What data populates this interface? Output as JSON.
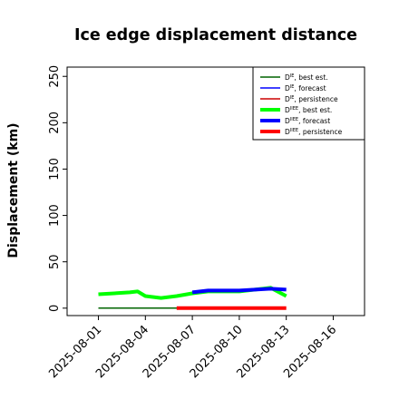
{
  "chart_data": {
    "type": "line",
    "title": "Ice edge displacement distance",
    "ylabel": "Displacement (km)",
    "xlabel": "",
    "ylim": [
      -8,
      260
    ],
    "xlim": [
      "2025-07-30",
      "2025-08-18"
    ],
    "yticks": [
      0,
      50,
      100,
      150,
      200,
      250
    ],
    "xticks": [
      {
        "label": "2025-08-01",
        "color": "#000000"
      },
      {
        "label": "2025-08-04",
        "color": "#000000"
      },
      {
        "label": "2025-08-07",
        "color": "#228b22"
      },
      {
        "label": "2025-08-10",
        "color": "#000000"
      },
      {
        "label": "2025-08-13",
        "color": "#000000"
      },
      {
        "label": "2025-08-16",
        "color": "#000000"
      }
    ],
    "grid": false,
    "legend_position": "top-right",
    "legend": [
      {
        "base": "D",
        "sup": "IE",
        "text": ", best est.",
        "color": "#006400",
        "thick": false
      },
      {
        "base": "D",
        "sup": "IE",
        "text": ", forecast",
        "color": "#0000ff",
        "thick": false
      },
      {
        "base": "D",
        "sup": "IE",
        "text": ", persistence",
        "color": "#cc0000",
        "thick": false
      },
      {
        "base": "D",
        "sup": "IIEE",
        "text": ", best est.",
        "color": "#00ff00",
        "thick": true
      },
      {
        "base": "D",
        "sup": "IIEE",
        "text": ", forecast",
        "color": "#0000ff",
        "thick": true
      },
      {
        "base": "D",
        "sup": "IIEE",
        "text": ", persistence",
        "color": "#ff0000",
        "thick": true
      }
    ],
    "series": [
      {
        "color": "#006400",
        "thick": false,
        "x": [
          "2025-08-01",
          "2025-08-07"
        ],
        "y": [
          0,
          0
        ]
      },
      {
        "color": "#00ff00",
        "thick": true,
        "x": [
          "2025-08-01",
          "2025-08-03",
          "2025-08-03.5",
          "2025-08-04",
          "2025-08-05",
          "2025-08-06",
          "2025-08-07",
          "2025-08-08",
          "2025-08-09",
          "2025-08-10",
          "2025-08-11",
          "2025-08-12",
          "2025-08-13"
        ],
        "y": [
          15,
          17,
          18,
          13,
          11,
          13,
          16,
          18,
          18,
          18,
          20,
          22,
          13
        ]
      },
      {
        "color": "#0000ff",
        "thick": true,
        "x": [
          "2025-08-07",
          "2025-08-08",
          "2025-08-09",
          "2025-08-10",
          "2025-08-11",
          "2025-08-12",
          "2025-08-13"
        ],
        "y": [
          17,
          19,
          19,
          19,
          20,
          21,
          20
        ]
      },
      {
        "color": "#ff0000",
        "thick": true,
        "x": [
          "2025-08-06",
          "2025-08-13"
        ],
        "y": [
          0,
          0
        ]
      }
    ]
  }
}
